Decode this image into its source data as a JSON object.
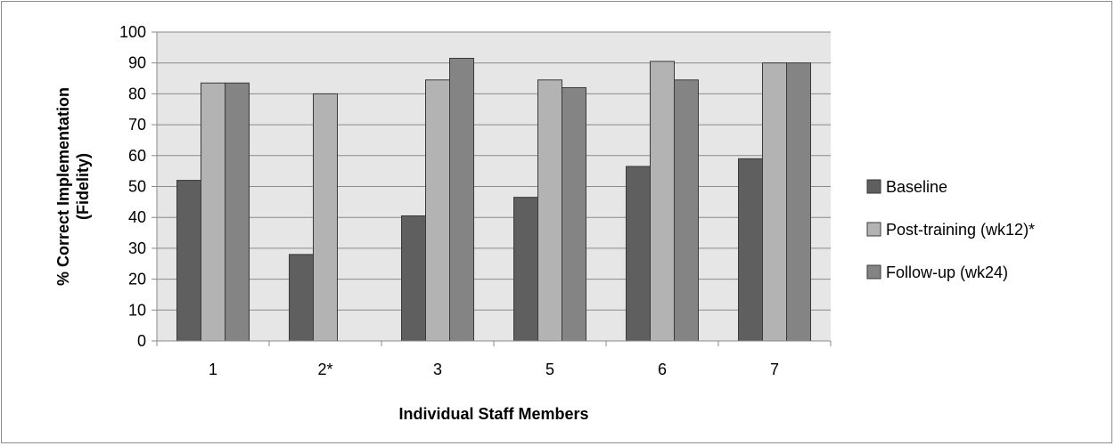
{
  "chart_data": {
    "type": "bar",
    "title": "",
    "xlabel": "Individual Staff Members",
    "ylabel_lines": [
      "% Correct Implementation",
      "(Fidelity)"
    ],
    "categories": [
      "1",
      "2*",
      "3",
      "5",
      "6",
      "7"
    ],
    "ylim": [
      0,
      100
    ],
    "yticks": [
      0,
      10,
      20,
      30,
      40,
      50,
      60,
      70,
      80,
      90,
      100
    ],
    "grid": true,
    "legend_position": "right",
    "plot_background": "#e6e6e6",
    "series": [
      {
        "name": "Baseline",
        "color": "#5f5f5f",
        "values": [
          52,
          28,
          40.5,
          46.5,
          56.5,
          59
        ]
      },
      {
        "name": "Post-training (wk12)*",
        "color": "#b3b3b3",
        "values": [
          83.5,
          80,
          84.5,
          84.5,
          90.5,
          90
        ]
      },
      {
        "name": "Follow-up (wk24)",
        "color": "#848484",
        "values": [
          83.5,
          null,
          91.5,
          82,
          84.5,
          90
        ]
      }
    ]
  }
}
